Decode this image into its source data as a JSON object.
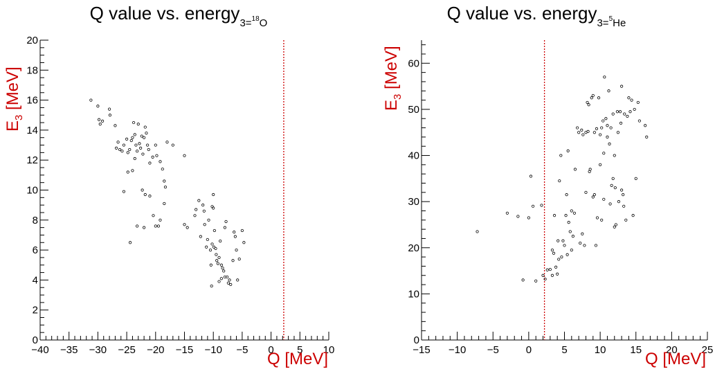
{
  "chart_data": [
    {
      "type": "scatter",
      "title_main": "Q  value vs. energy",
      "title_sub_prefix": "3=",
      "title_sup": "18",
      "title_sub_suffix": "O",
      "xlabel": "Q [MeV]",
      "ylabel_main": "E",
      "ylabel_sub": "3",
      "ylabel_suffix": " [MeV]",
      "xlim": [
        -40,
        10
      ],
      "ylim": [
        0,
        20
      ],
      "x_ticks": [
        -40,
        -35,
        -30,
        -25,
        -20,
        -15,
        -10,
        -5,
        0,
        5,
        10
      ],
      "y_ticks": [
        0,
        2,
        4,
        6,
        8,
        10,
        12,
        14,
        16,
        18,
        20
      ],
      "vline_x": 2.2,
      "vline_color": "#cc0000",
      "marker_color": "#000000",
      "points": [
        [
          -31.2,
          16.0
        ],
        [
          -30.0,
          15.6
        ],
        [
          -29.8,
          14.7
        ],
        [
          -29.6,
          14.4
        ],
        [
          -29.2,
          14.6
        ],
        [
          -28.0,
          15.4
        ],
        [
          -27.9,
          15.0
        ],
        [
          -27.0,
          14.3
        ],
        [
          -26.5,
          13.2
        ],
        [
          -26.8,
          12.8
        ],
        [
          -26.2,
          12.7
        ],
        [
          -25.8,
          12.6
        ],
        [
          -25.5,
          13.0
        ],
        [
          -25.0,
          13.4
        ],
        [
          -24.8,
          12.5
        ],
        [
          -24.5,
          12.7
        ],
        [
          -24.2,
          13.3
        ],
        [
          -24.0,
          13.5
        ],
        [
          -23.8,
          14.5
        ],
        [
          -23.6,
          13.7
        ],
        [
          -23.4,
          13.0
        ],
        [
          -23.2,
          12.6
        ],
        [
          -23.0,
          14.4
        ],
        [
          -22.8,
          13.1
        ],
        [
          -22.6,
          12.8
        ],
        [
          -22.4,
          13.6
        ],
        [
          -22.2,
          12.4
        ],
        [
          -22.0,
          13.5
        ],
        [
          -21.8,
          14.2
        ],
        [
          -21.6,
          13.8
        ],
        [
          -21.4,
          13.0
        ],
        [
          -21.2,
          12.7
        ],
        [
          -21.0,
          11.8
        ],
        [
          -20.5,
          12.2
        ],
        [
          -20.0,
          13.0
        ],
        [
          -19.8,
          12.3
        ],
        [
          -19.2,
          11.9
        ],
        [
          -18.8,
          11.4
        ],
        [
          -18.5,
          10.6
        ],
        [
          -18.3,
          10.2
        ],
        [
          -18.0,
          13.2
        ],
        [
          -17.0,
          13.0
        ],
        [
          -15.0,
          12.3
        ],
        [
          -24.8,
          11.2
        ],
        [
          -24.0,
          11.3
        ],
        [
          -23.6,
          12.1
        ],
        [
          -25.5,
          9.9
        ],
        [
          -22.3,
          10.0
        ],
        [
          -21.8,
          9.7
        ],
        [
          -21.0,
          9.6
        ],
        [
          -18.5,
          9.1
        ],
        [
          -24.4,
          6.5
        ],
        [
          -23.2,
          7.6
        ],
        [
          -22.0,
          7.5
        ],
        [
          -20.4,
          8.3
        ],
        [
          -20.0,
          7.6
        ],
        [
          -19.5,
          7.6
        ],
        [
          -19.2,
          8.0
        ],
        [
          -15.0,
          7.7
        ],
        [
          -14.5,
          7.5
        ],
        [
          -13.2,
          8.3
        ],
        [
          -13.0,
          8.7
        ],
        [
          -12.5,
          9.3
        ],
        [
          -12.2,
          6.9
        ],
        [
          -11.8,
          9.0
        ],
        [
          -11.5,
          7.7
        ],
        [
          -11.0,
          6.7
        ],
        [
          -10.8,
          8.0
        ],
        [
          -10.5,
          6.0
        ],
        [
          -10.2,
          6.4
        ],
        [
          -10.0,
          9.7
        ],
        [
          -10.2,
          8.9
        ],
        [
          -10.0,
          8.8
        ],
        [
          -9.8,
          7.3
        ],
        [
          -9.6,
          6.1
        ],
        [
          -9.5,
          5.7
        ],
        [
          -9.4,
          5.3
        ],
        [
          -9.2,
          5.1
        ],
        [
          -9.0,
          5.5
        ],
        [
          -8.8,
          6.6
        ],
        [
          -8.6,
          5.0
        ],
        [
          -8.4,
          4.8
        ],
        [
          -8.2,
          4.6
        ],
        [
          -8.0,
          7.5
        ],
        [
          -7.8,
          7.9
        ],
        [
          -7.6,
          4.2
        ],
        [
          -7.4,
          3.8
        ],
        [
          -7.2,
          4.0
        ],
        [
          -7.0,
          3.7
        ],
        [
          -6.6,
          5.3
        ],
        [
          -6.4,
          7.2
        ],
        [
          -6.2,
          6.9
        ],
        [
          -6.0,
          6.0
        ],
        [
          -5.8,
          4.0
        ],
        [
          -5.5,
          5.4
        ],
        [
          -5.0,
          7.3
        ],
        [
          -4.7,
          6.5
        ],
        [
          -10.3,
          3.6
        ],
        [
          -9.0,
          3.9
        ],
        [
          -8.6,
          4.1
        ],
        [
          -8.0,
          4.2
        ],
        [
          -10.4,
          5.0
        ],
        [
          -11.2,
          6.2
        ],
        [
          -9.9,
          6.2
        ],
        [
          -11.6,
          8.6
        ]
      ]
    },
    {
      "type": "scatter",
      "title_main": "Q value vs. energy",
      "title_sub_prefix": "3=",
      "title_sup": "5",
      "title_sub_suffix": "He",
      "xlabel": "Q [MeV]",
      "ylabel_main": "E",
      "ylabel_sub": "3",
      "ylabel_suffix": " [MeV]",
      "xlim": [
        -15,
        25
      ],
      "ylim": [
        0,
        65
      ],
      "x_ticks": [
        -15,
        -10,
        -5,
        0,
        5,
        10,
        15,
        20,
        25
      ],
      "y_ticks": [
        0,
        10,
        20,
        30,
        40,
        50,
        60
      ],
      "vline_x": 2.2,
      "vline_color": "#cc0000",
      "marker_color": "#000000",
      "points": [
        [
          -7.2,
          23.5
        ],
        [
          -3.0,
          27.5
        ],
        [
          -1.5,
          26.8
        ],
        [
          -0.8,
          13.0
        ],
        [
          0.0,
          26.5
        ],
        [
          0.3,
          35.5
        ],
        [
          0.6,
          29.0
        ],
        [
          1.0,
          12.8
        ],
        [
          1.8,
          29.2
        ],
        [
          2.0,
          14.0
        ],
        [
          2.3,
          13.2
        ],
        [
          2.6,
          15.2
        ],
        [
          3.0,
          15.3
        ],
        [
          3.3,
          14.0
        ],
        [
          3.5,
          18.8
        ],
        [
          3.6,
          27.0
        ],
        [
          3.8,
          15.8
        ],
        [
          4.0,
          14.3
        ],
        [
          4.1,
          21.5
        ],
        [
          4.3,
          34.5
        ],
        [
          4.5,
          40.0
        ],
        [
          4.6,
          18.0
        ],
        [
          4.8,
          21.5
        ],
        [
          5.0,
          20.5
        ],
        [
          5.2,
          27.0
        ],
        [
          5.3,
          31.5
        ],
        [
          5.5,
          41.0
        ],
        [
          5.6,
          25.5
        ],
        [
          5.8,
          23.5
        ],
        [
          6.0,
          19.5
        ],
        [
          6.2,
          22.5
        ],
        [
          6.4,
          27.5
        ],
        [
          6.5,
          37.0
        ],
        [
          6.8,
          46.0
        ],
        [
          7.0,
          45.0
        ],
        [
          7.2,
          21.0
        ],
        [
          7.4,
          45.5
        ],
        [
          7.6,
          44.5
        ],
        [
          7.8,
          20.5
        ],
        [
          8.0,
          45.0
        ],
        [
          8.2,
          51.5
        ],
        [
          8.4,
          51.0
        ],
        [
          8.5,
          36.5
        ],
        [
          8.6,
          37.0
        ],
        [
          8.8,
          52.5
        ],
        [
          9.0,
          31.0
        ],
        [
          9.2,
          45.0
        ],
        [
          9.4,
          20.5
        ],
        [
          9.6,
          26.5
        ],
        [
          9.8,
          52.5
        ],
        [
          10.0,
          44.5
        ],
        [
          10.2,
          46.0
        ],
        [
          10.4,
          47.5
        ],
        [
          10.5,
          30.5
        ],
        [
          10.6,
          57.0
        ],
        [
          10.8,
          48.0
        ],
        [
          11.0,
          46.5
        ],
        [
          11.2,
          54.0
        ],
        [
          11.3,
          42.5
        ],
        [
          11.4,
          29.5
        ],
        [
          11.6,
          33.5
        ],
        [
          11.8,
          49.0
        ],
        [
          12.0,
          24.5
        ],
        [
          12.2,
          25.0
        ],
        [
          12.4,
          49.5
        ],
        [
          12.5,
          45.0
        ],
        [
          12.6,
          30.0
        ],
        [
          12.8,
          49.5
        ],
        [
          13.0,
          55.0
        ],
        [
          13.2,
          31.5
        ],
        [
          13.4,
          49.0
        ],
        [
          13.6,
          26.0
        ],
        [
          13.8,
          48.5
        ],
        [
          14.0,
          52.5
        ],
        [
          14.2,
          49.5
        ],
        [
          14.4,
          52.0
        ],
        [
          14.6,
          27.0
        ],
        [
          15.0,
          35.0
        ],
        [
          15.3,
          51.5
        ],
        [
          15.5,
          47.5
        ],
        [
          16.3,
          46.5
        ],
        [
          16.5,
          44.0
        ],
        [
          9.5,
          45.8
        ],
        [
          10.0,
          38.0
        ],
        [
          11.0,
          44.0
        ],
        [
          12.0,
          40.0
        ],
        [
          13.0,
          32.5
        ],
        [
          11.8,
          35.0
        ],
        [
          10.5,
          40.5
        ],
        [
          9.2,
          31.5
        ],
        [
          8.0,
          32.0
        ],
        [
          7.5,
          23.0
        ],
        [
          6.0,
          28.0
        ],
        [
          5.4,
          18.5
        ],
        [
          4.2,
          17.5
        ],
        [
          3.3,
          19.5
        ],
        [
          9.0,
          53.0
        ],
        [
          8.3,
          45.2
        ],
        [
          12.9,
          47.0
        ],
        [
          14.8,
          50.0
        ],
        [
          11.5,
          46.0
        ],
        [
          10.2,
          26.0
        ],
        [
          13.3,
          29.0
        ],
        [
          12.1,
          33.0
        ]
      ]
    }
  ]
}
